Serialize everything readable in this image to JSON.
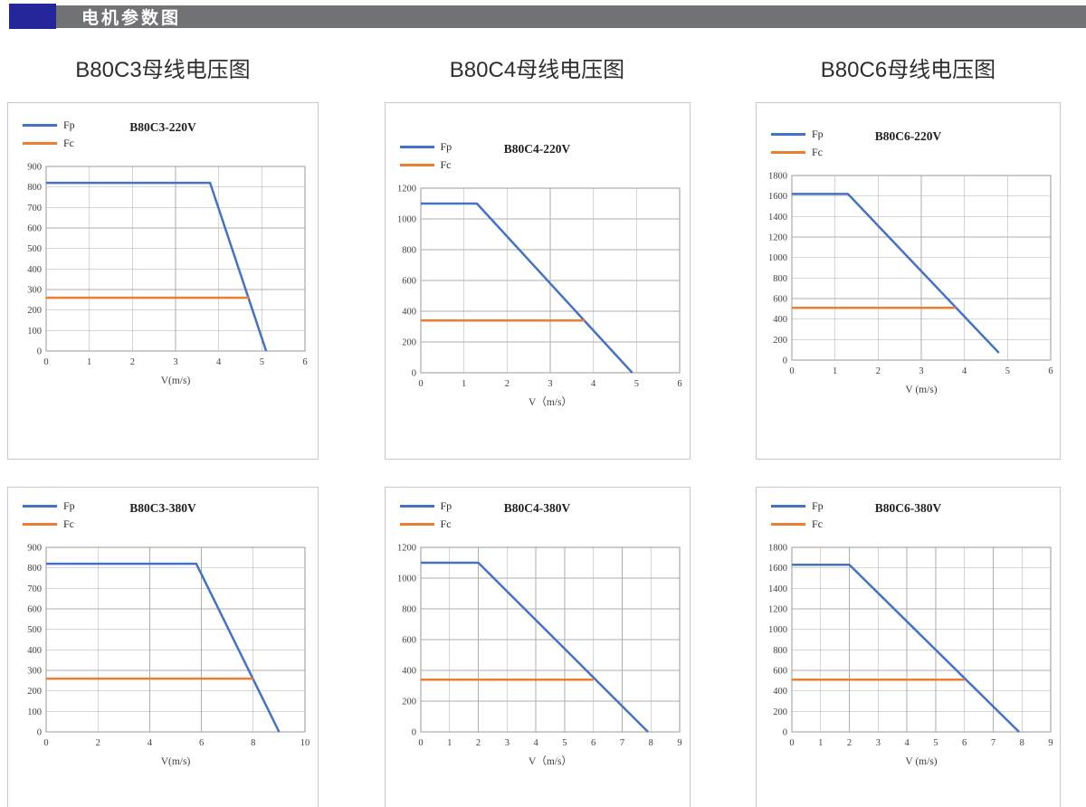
{
  "header": {
    "title": "电机参数图",
    "accent_color": "#26269B",
    "bar_color": "#717276",
    "text_color": "#FFFFFF"
  },
  "colors": {
    "fp": "#4472C4",
    "fc": "#ED7D31",
    "grid": "#ADADAD",
    "plot_border": "#9A9A9A",
    "tick_text": "#3F3F3F",
    "panel_border": "#C9C9C9"
  },
  "chart_data": [
    {
      "type": "line",
      "section_title": "B80C3母线电压图",
      "title": "B80C3-220V",
      "xlabel": "V(m/s)",
      "xlim": [
        0,
        6
      ],
      "xticks": [
        0,
        1,
        2,
        3,
        4,
        5,
        6
      ],
      "ylim": [
        0,
        900
      ],
      "yticks": [
        0,
        100,
        200,
        300,
        400,
        500,
        600,
        700,
        800,
        900
      ],
      "grid": true,
      "legend_position": "top-left",
      "series": [
        {
          "name": "Fp",
          "color_key": "fp",
          "points": [
            [
              0,
              820
            ],
            [
              3.8,
              820
            ],
            [
              5.1,
              0
            ]
          ]
        },
        {
          "name": "Fc",
          "color_key": "fc",
          "points": [
            [
              0,
              260
            ],
            [
              4.7,
              260
            ]
          ]
        }
      ]
    },
    {
      "type": "line",
      "section_title": "B80C4母线电压图",
      "title": "B80C4-220V",
      "xlabel": "V（m/s）",
      "xlim": [
        0,
        6
      ],
      "xticks": [
        0,
        1,
        2,
        3,
        4,
        5,
        6
      ],
      "ylim": [
        0,
        1200
      ],
      "yticks": [
        0,
        200,
        400,
        600,
        800,
        1000,
        1200
      ],
      "grid": true,
      "legend_position": "top-left",
      "series": [
        {
          "name": "Fp",
          "color_key": "fp",
          "points": [
            [
              0,
              1100
            ],
            [
              1.3,
              1100
            ],
            [
              4.9,
              0
            ]
          ]
        },
        {
          "name": "Fc",
          "color_key": "fc",
          "points": [
            [
              0,
              340
            ],
            [
              3.8,
              340
            ]
          ]
        }
      ]
    },
    {
      "type": "line",
      "section_title": "B80C6母线电压图",
      "title": "B80C6-220V",
      "xlabel": "V (m/s)",
      "xlim": [
        0,
        6
      ],
      "xticks": [
        0,
        1,
        2,
        3,
        4,
        5,
        6
      ],
      "ylim": [
        0,
        1800
      ],
      "yticks": [
        0,
        200,
        400,
        600,
        800,
        1000,
        1200,
        1400,
        1600,
        1800
      ],
      "grid": true,
      "legend_position": "top-left",
      "series": [
        {
          "name": "Fp",
          "color_key": "fp",
          "points": [
            [
              0,
              1620
            ],
            [
              1.3,
              1620
            ],
            [
              4.8,
              70
            ]
          ]
        },
        {
          "name": "Fc",
          "color_key": "fc",
          "points": [
            [
              0,
              510
            ],
            [
              3.8,
              510
            ]
          ]
        }
      ]
    },
    {
      "type": "line",
      "section_title": "",
      "title": "B80C3-380V",
      "xlabel": "V(m/s)",
      "xlim": [
        0,
        10
      ],
      "xticks": [
        0,
        2,
        4,
        6,
        8,
        10
      ],
      "ylim": [
        0,
        900
      ],
      "yticks": [
        0,
        100,
        200,
        300,
        400,
        500,
        600,
        700,
        800,
        900
      ],
      "grid": true,
      "legend_position": "top-left",
      "series": [
        {
          "name": "Fp",
          "color_key": "fp",
          "points": [
            [
              0,
              820
            ],
            [
              5.8,
              820
            ],
            [
              9,
              0
            ]
          ]
        },
        {
          "name": "Fc",
          "color_key": "fc",
          "points": [
            [
              0,
              260
            ],
            [
              8,
              260
            ]
          ]
        }
      ]
    },
    {
      "type": "line",
      "section_title": "",
      "title": "B80C4-380V",
      "xlabel": "V（m/s）",
      "xlim": [
        0,
        9
      ],
      "xticks": [
        0,
        1,
        2,
        3,
        4,
        5,
        6,
        7,
        8,
        9
      ],
      "ylim": [
        0,
        1200
      ],
      "yticks": [
        0,
        200,
        400,
        600,
        800,
        1000,
        1200
      ],
      "grid": true,
      "legend_position": "top-left",
      "series": [
        {
          "name": "Fp",
          "color_key": "fp",
          "points": [
            [
              0,
              1100
            ],
            [
              2,
              1100
            ],
            [
              7.9,
              0
            ]
          ]
        },
        {
          "name": "Fc",
          "color_key": "fc",
          "points": [
            [
              0,
              340
            ],
            [
              6,
              340
            ]
          ]
        }
      ]
    },
    {
      "type": "line",
      "section_title": "",
      "title": "B80C6-380V",
      "xlabel": "V (m/s)",
      "xlim": [
        0,
        9
      ],
      "xticks": [
        0,
        1,
        2,
        3,
        4,
        5,
        6,
        7,
        8,
        9
      ],
      "ylim": [
        0,
        1800
      ],
      "yticks": [
        0,
        200,
        400,
        600,
        800,
        1000,
        1200,
        1400,
        1600,
        1800
      ],
      "grid": true,
      "legend_position": "top-left",
      "series": [
        {
          "name": "Fp",
          "color_key": "fp",
          "points": [
            [
              0,
              1630
            ],
            [
              2,
              1630
            ],
            [
              7.9,
              0
            ]
          ]
        },
        {
          "name": "Fc",
          "color_key": "fc",
          "points": [
            [
              0,
              510
            ],
            [
              6,
              510
            ]
          ]
        }
      ]
    }
  ]
}
